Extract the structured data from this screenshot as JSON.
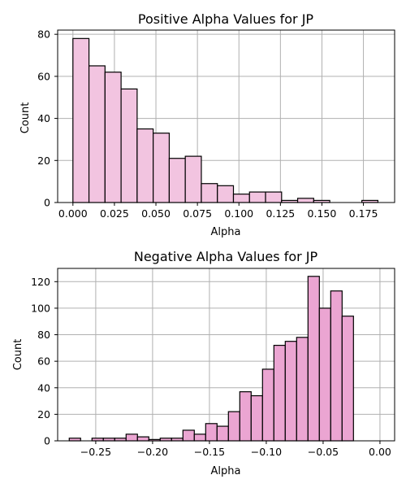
{
  "chart_data": [
    {
      "type": "bar",
      "subtype": "histogram",
      "title": "Positive Alpha Values for JP",
      "xlabel": "Alpha",
      "ylabel": "Count",
      "color": "#f2c4e0",
      "xlim": [
        -0.0092,
        0.1938
      ],
      "ylim": [
        0,
        82
      ],
      "xticks": [
        0.0,
        0.025,
        0.05,
        0.075,
        0.1,
        0.125,
        0.15,
        0.175
      ],
      "xtick_labels": [
        "0.000",
        "0.025",
        "0.050",
        "0.075",
        "0.100",
        "0.125",
        "0.150",
        "0.175"
      ],
      "yticks": [
        0,
        20,
        40,
        60,
        80
      ],
      "ytick_labels": [
        "0",
        "20",
        "40",
        "60",
        "80"
      ],
      "grid": true,
      "bins": [
        [
          0.0,
          0.00967,
          78
        ],
        [
          0.00967,
          0.01934,
          65
        ],
        [
          0.01934,
          0.02901,
          62
        ],
        [
          0.02901,
          0.03868,
          54
        ],
        [
          0.03868,
          0.04835,
          35
        ],
        [
          0.04835,
          0.05802,
          33
        ],
        [
          0.05802,
          0.06769,
          21
        ],
        [
          0.06769,
          0.07736,
          22
        ],
        [
          0.07736,
          0.08703,
          9
        ],
        [
          0.08703,
          0.0967,
          8
        ],
        [
          0.0967,
          0.10637,
          4
        ],
        [
          0.10637,
          0.11604,
          5
        ],
        [
          0.11604,
          0.12571,
          5
        ],
        [
          0.12571,
          0.13538,
          1
        ],
        [
          0.13538,
          0.14505,
          2
        ],
        [
          0.14505,
          0.15472,
          1
        ],
        [
          0.15472,
          0.16439,
          0
        ],
        [
          0.16439,
          0.17406,
          0
        ],
        [
          0.17406,
          0.18373,
          1
        ]
      ]
    },
    {
      "type": "bar",
      "subtype": "histogram",
      "title": "Negative Alpha Values for JP",
      "xlabel": "Alpha",
      "ylabel": "Count",
      "color": "#eba5d2",
      "xlim": [
        -0.2835,
        0.0129
      ],
      "ylim": [
        0,
        130
      ],
      "xticks": [
        -0.25,
        -0.2,
        -0.15,
        -0.1,
        -0.05,
        0.0
      ],
      "xtick_labels": [
        "−0.25",
        "−0.20",
        "−0.15",
        "−0.10",
        "−0.05",
        "0.00"
      ],
      "yticks": [
        0,
        20,
        40,
        60,
        80,
        100,
        120
      ],
      "ytick_labels": [
        "0",
        "20",
        "40",
        "60",
        "80",
        "100",
        "120"
      ],
      "grid": true,
      "bins": [
        [
          -0.2733,
          -0.2633,
          2
        ],
        [
          -0.2633,
          -0.2533,
          0
        ],
        [
          -0.2533,
          -0.2433,
          2
        ],
        [
          -0.2433,
          -0.2333,
          2
        ],
        [
          -0.2333,
          -0.2233,
          2
        ],
        [
          -0.2233,
          -0.2133,
          5
        ],
        [
          -0.2133,
          -0.2033,
          3
        ],
        [
          -0.2033,
          -0.1933,
          1
        ],
        [
          -0.1933,
          -0.1833,
          2
        ],
        [
          -0.1833,
          -0.1733,
          2
        ],
        [
          -0.1733,
          -0.1633,
          8
        ],
        [
          -0.1633,
          -0.1533,
          5
        ],
        [
          -0.1533,
          -0.1433,
          13
        ],
        [
          -0.1433,
          -0.1333,
          11
        ],
        [
          -0.1333,
          -0.1233,
          22
        ],
        [
          -0.1233,
          -0.1133,
          37
        ],
        [
          -0.1133,
          -0.1033,
          34
        ],
        [
          -0.1033,
          -0.0933,
          54
        ],
        [
          -0.0933,
          -0.0833,
          72
        ],
        [
          -0.0833,
          -0.0733,
          75
        ],
        [
          -0.0733,
          -0.0633,
          78
        ],
        [
          -0.0633,
          -0.0533,
          124
        ],
        [
          -0.0533,
          -0.0433,
          100
        ],
        [
          -0.0433,
          -0.0333,
          113
        ],
        [
          -0.0333,
          -0.0233,
          94
        ]
      ]
    }
  ]
}
